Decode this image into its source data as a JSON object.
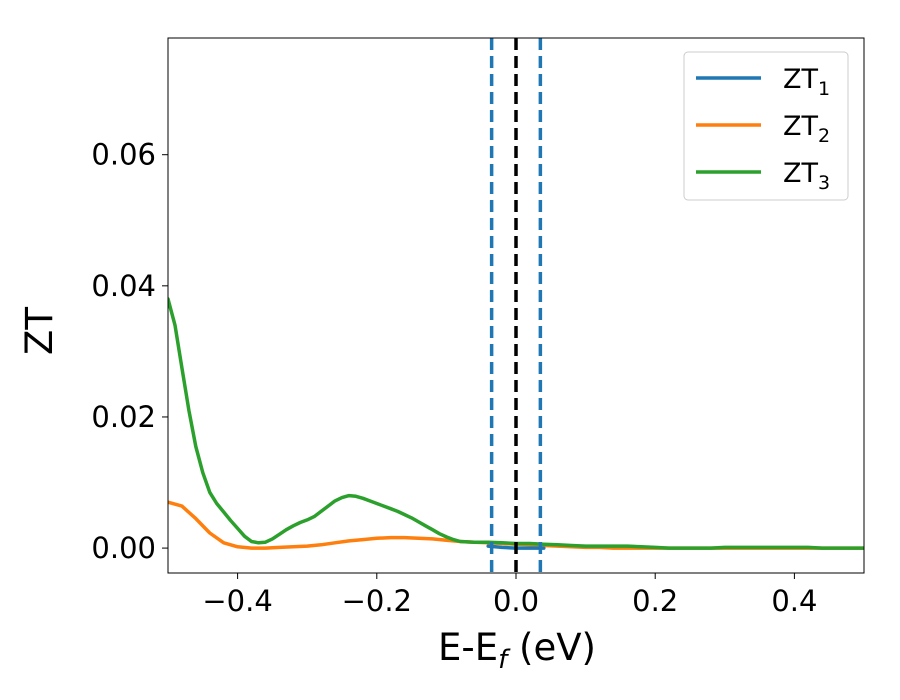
{
  "chart_data": {
    "type": "line",
    "xlabel_main": "E-E",
    "xlabel_sub": "f",
    "xlabel_unit": " (eV)",
    "ylabel": "ZT",
    "xlim": [
      -0.5,
      0.5
    ],
    "ylim": [
      -0.0038,
      0.0778
    ],
    "x_ticks": [
      -0.4,
      -0.2,
      0.0,
      0.2,
      0.4
    ],
    "x_tick_labels": [
      "−0.4",
      "−0.2",
      "0.0",
      "0.2",
      "0.4"
    ],
    "y_ticks": [
      0.0,
      0.02,
      0.04,
      0.06
    ],
    "y_tick_labels": [
      "0.00",
      "0.02",
      "0.04",
      "0.06"
    ],
    "grid": false,
    "legend_position": "top-right",
    "vlines": [
      {
        "x": -0.035,
        "style": "dashed",
        "color": "#1f77b4"
      },
      {
        "x": 0.0,
        "style": "dashed",
        "color": "#000000"
      },
      {
        "x": 0.035,
        "style": "dashed",
        "color": "#1f77b4"
      }
    ],
    "series": [
      {
        "name": "ZT",
        "name_sub": "1",
        "color": "#1f77b4",
        "x": [
          -0.04,
          -0.02,
          0.0,
          0.02,
          0.04
        ],
        "y": [
          0.0003,
          0.0001,
          0.0,
          0.0,
          0.0
        ]
      },
      {
        "name": "ZT",
        "name_sub": "2",
        "color": "#ff7f0e",
        "x": [
          -0.5,
          -0.48,
          -0.46,
          -0.44,
          -0.42,
          -0.4,
          -0.38,
          -0.36,
          -0.34,
          -0.32,
          -0.3,
          -0.28,
          -0.26,
          -0.24,
          -0.22,
          -0.2,
          -0.18,
          -0.16,
          -0.14,
          -0.12,
          -0.1,
          -0.08,
          -0.06,
          -0.04,
          -0.02,
          0.0,
          0.02,
          0.04,
          0.06,
          0.08,
          0.1,
          0.12,
          0.14,
          0.16,
          0.18,
          0.2,
          0.22,
          0.24,
          0.26,
          0.28,
          0.3,
          0.32,
          0.34,
          0.36,
          0.38,
          0.4,
          0.42,
          0.44,
          0.46,
          0.48,
          0.5
        ],
        "y": [
          0.007,
          0.0064,
          0.0045,
          0.0023,
          0.0008,
          0.0002,
          0.0,
          0.0,
          0.0001,
          0.0002,
          0.0003,
          0.0005,
          0.0008,
          0.0011,
          0.0013,
          0.0015,
          0.0016,
          0.0016,
          0.0015,
          0.0014,
          0.0012,
          0.001,
          0.0009,
          0.0008,
          0.0007,
          0.0006,
          0.0005,
          0.0004,
          0.0003,
          0.0002,
          0.0001,
          0.0001,
          0.0,
          0.0,
          0.0,
          0.0,
          0.0,
          0.0,
          0.0,
          0.0,
          0.0,
          0.0,
          0.0,
          0.0,
          0.0,
          0.0,
          0.0,
          0.0,
          0.0,
          0.0,
          0.0
        ]
      },
      {
        "name": "ZT",
        "name_sub": "3",
        "color": "#2ca02c",
        "x": [
          -0.5,
          -0.49,
          -0.48,
          -0.47,
          -0.46,
          -0.45,
          -0.44,
          -0.43,
          -0.42,
          -0.41,
          -0.4,
          -0.39,
          -0.38,
          -0.37,
          -0.36,
          -0.35,
          -0.34,
          -0.33,
          -0.32,
          -0.31,
          -0.3,
          -0.29,
          -0.28,
          -0.27,
          -0.26,
          -0.25,
          -0.24,
          -0.23,
          -0.22,
          -0.21,
          -0.2,
          -0.19,
          -0.18,
          -0.17,
          -0.16,
          -0.15,
          -0.14,
          -0.13,
          -0.12,
          -0.11,
          -0.1,
          -0.09,
          -0.08,
          -0.06,
          -0.04,
          -0.02,
          0.0,
          0.02,
          0.04,
          0.06,
          0.08,
          0.1,
          0.12,
          0.14,
          0.16,
          0.18,
          0.2,
          0.22,
          0.24,
          0.26,
          0.28,
          0.3,
          0.32,
          0.34,
          0.36,
          0.38,
          0.4,
          0.42,
          0.44,
          0.46,
          0.48,
          0.5
        ],
        "y": [
          0.038,
          0.034,
          0.0275,
          0.021,
          0.0155,
          0.0115,
          0.0085,
          0.0068,
          0.0055,
          0.0042,
          0.003,
          0.0018,
          0.001,
          0.0008,
          0.0009,
          0.0014,
          0.0021,
          0.0028,
          0.0034,
          0.0039,
          0.0043,
          0.0048,
          0.0056,
          0.0064,
          0.0072,
          0.0077,
          0.008,
          0.0079,
          0.0076,
          0.0072,
          0.0068,
          0.0064,
          0.006,
          0.0056,
          0.0051,
          0.0046,
          0.004,
          0.0034,
          0.0028,
          0.0022,
          0.0017,
          0.0013,
          0.001,
          0.0009,
          0.0009,
          0.0008,
          0.0007,
          0.0007,
          0.0006,
          0.0005,
          0.0004,
          0.0003,
          0.0003,
          0.0003,
          0.0003,
          0.0002,
          0.0001,
          0.0,
          0.0,
          0.0,
          0.0,
          0.0001,
          0.0001,
          0.0001,
          0.0001,
          0.0001,
          0.0001,
          0.0001,
          0.0,
          0.0,
          0.0,
          0.0
        ]
      }
    ]
  }
}
